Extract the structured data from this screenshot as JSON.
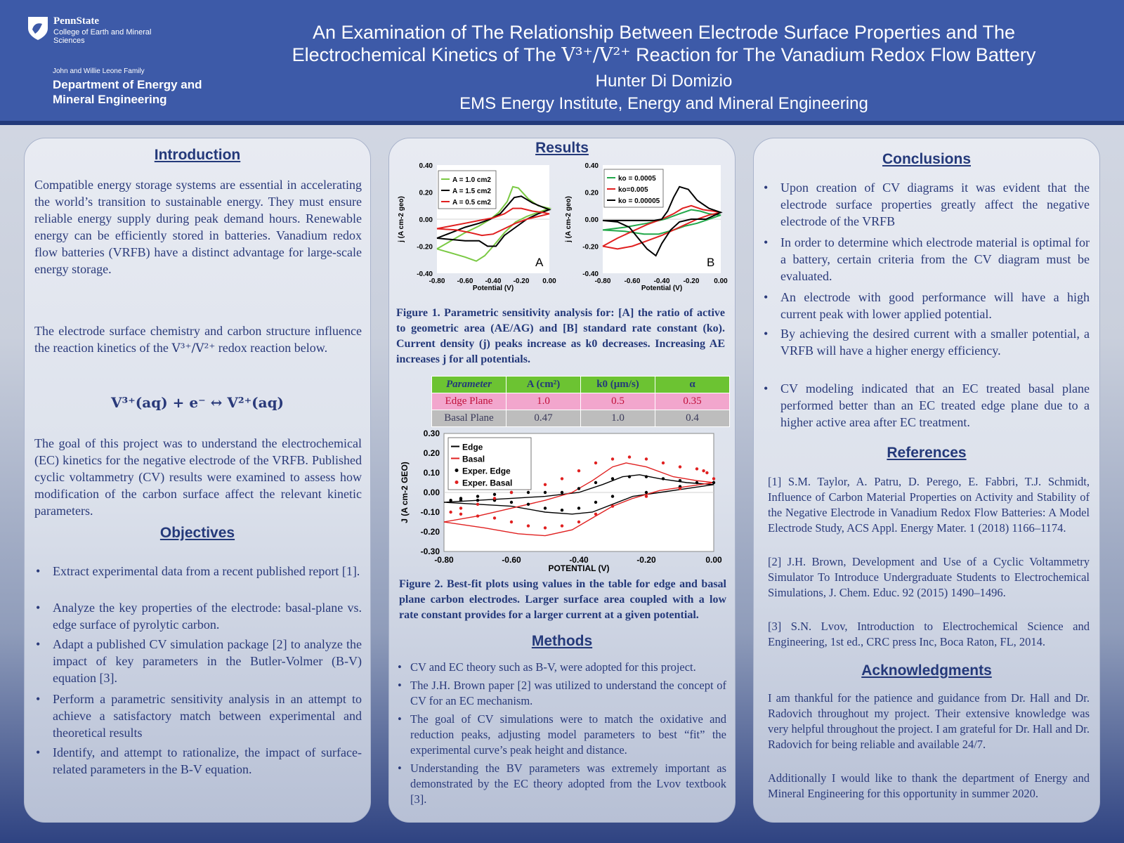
{
  "header": {
    "psu_name": "PennState",
    "college": "College of Earth and Mineral Sciences",
    "dept_small": "John and Willie Leone Family",
    "dept_big": "Department of Energy and Mineral Engineering",
    "title_line1": "An Examination of The Relationship Between Electrode Surface Properties and The",
    "title_line2_pre": "Electrochemical Kinetics of The ",
    "title_line2_ion": "V³⁺/V²⁺",
    "title_line2_post": " Reaction for The Vanadium Redox Flow Battery",
    "author": "Hunter Di Domizio",
    "affiliation": "EMS Energy Institute, Energy and Mineral Engineering"
  },
  "introduction": {
    "heading": "Introduction",
    "p1": "Compatible energy storage systems are essential in accelerating the world’s transition to sustainable energy. They must ensure reliable energy supply during peak demand hours. Renewable energy can be efficiently stored in batteries. Vanadium redox flow batteries (VRFB) have a distinct advantage for large-scale energy storage.",
    "p2_pre": "The electrode surface chemistry and carbon structure influence the reaction kinetics of the ",
    "p2_ion": "V³⁺/V²⁺",
    "p2_post": " redox reaction below.",
    "equation": "V³⁺(aq) + e⁻ ↔ V²⁺(aq)",
    "p3": "The goal of this project was to understand the electrochemical (EC) kinetics for the negative electrode of the VRFB. Published cyclic voltammetry (CV) results were examined to assess how modification of the carbon surface affect the relevant kinetic parameters."
  },
  "objectives": {
    "heading": "Objectives",
    "items": [
      "Extract experimental data from a recent published report [1].",
      "Analyze the key properties of the electrode: basal-plane vs. edge surface of pyrolytic carbon.",
      "Adapt a published CV simulation package [2] to analyze the impact of key parameters in the Butler-Volmer (B-V) equation [3].",
      "Perform a parametric sensitivity analysis in an attempt to achieve a satisfactory match between experimental and theoretical results",
      "Identify, and attempt to rationalize, the impact of surface-related parameters in the B-V equation."
    ]
  },
  "results": {
    "heading": "Results",
    "fig1_caption": "Figure 1. Parametric sensitivity analysis for: [A] the ratio of active to geometric area (AE/AG) and [B] standard rate constant (ko). Current density (j) peaks increase as k0 decreases. Increasing AE increases j for all potentials.",
    "table": {
      "headers": [
        "Parameter",
        "A (cm²)",
        "k0 (μm/s)",
        "α"
      ],
      "rows": [
        [
          "Edge Plane",
          "1.0",
          "0.5",
          "0.35"
        ],
        [
          "Basal Plane",
          "0.47",
          "1.0",
          "0.4"
        ]
      ]
    },
    "fig2_caption": "Figure 2. Best-fit plots using values in the table for edge and basal plane carbon electrodes. Larger surface area coupled with a low rate constant provides for a larger current at a given potential."
  },
  "methods": {
    "heading": "Methods",
    "items": [
      "CV and EC theory such as B-V, were adopted for this project.",
      "The J.H. Brown paper [2] was utilized to understand the concept of CV for an EC mechanism.",
      "The goal of CV simulations were to match the oxidative and reduction peaks,  adjusting model parameters to best “fit” the experimental curve’s peak height and distance.",
      "Understanding the BV parameters was extremely important as demonstrated by the EC theory adopted from the Lvov textbook [3]."
    ]
  },
  "conclusions": {
    "heading": "Conclusions",
    "items": [
      "Upon creation of CV diagrams it was evident that the electrode surface properties greatly affect the negative electrode of the VRFB",
      "In order to determine which electrode material is optimal for a battery, certain criteria from the CV diagram must be evaluated.",
      "An electrode with good performance will have a high current peak with lower applied potential.",
      "By achieving the desired current with a smaller potential, a VRFB will have a higher energy efficiency.",
      "CV modeling indicated that an EC treated basal plane performed better than an EC treated edge plane due to a higher active area after EC treatment."
    ]
  },
  "references": {
    "heading": "References",
    "items": [
      "[1] S.M. Taylor, A. Patru, D. Perego, E. Fabbri, T.J. Schmidt, Influence of Carbon Material Properties on Activity and Stability of the Negative Electrode in Vanadium Redox Flow Batteries: A Model Electrode Study, ACS Appl. Energy Mater. 1 (2018) 1166–1174.",
      "[2] J.H. Brown, Development and Use of a Cyclic Voltammetry Simulator To Introduce Undergraduate Students to Electrochemical Simulations, J. Chem. Educ. 92 (2015) 1490–1496.",
      "[3] S.N. Lvov, Introduction to Electrochemical Science and Engineering, 1st ed., CRC press Inc, Boca Raton, FL, 2014."
    ]
  },
  "acknowledgments": {
    "heading": "Acknowledgments",
    "p1": "I am thankful for the patience and guidance from Dr. Hall and Dr. Radovich throughout my project. Their extensive knowledge was very helpful throughout the project. I am grateful for Dr. Hall and Dr. Radovich for being reliable and available 24/7.",
    "p2": "Additionally I would like to thank the department of Energy and Mineral Engineering for this opportunity in summer 2020."
  },
  "chart_data": [
    {
      "type": "line",
      "panel_label": "A",
      "xlabel": "Potential (V)",
      "ylabel": "j (A cm-2 geo)",
      "xlim": [
        -0.8,
        0.0
      ],
      "ylim": [
        -0.4,
        0.4
      ],
      "xticks": [
        "-0.80",
        "-0.60",
        "-0.40",
        "-0.20",
        "0.00"
      ],
      "yticks": [
        "0.40",
        "0.20",
        "0.00",
        "-0.20",
        "-0.40"
      ],
      "legend_position": "top-left",
      "grid": false,
      "series": [
        {
          "name": "A = 1.0 cm2",
          "color": "#7ac943",
          "x": [
            -0.8,
            -0.7,
            -0.6,
            -0.5,
            -0.42,
            -0.36,
            -0.3,
            -0.26,
            -0.22,
            -0.15,
            -0.08,
            0.0,
            -0.08,
            -0.16,
            -0.24,
            -0.32,
            -0.4,
            -0.46,
            -0.52,
            -0.6,
            -0.7,
            -0.8
          ],
          "y": [
            -0.22,
            -0.16,
            -0.1,
            -0.05,
            0.0,
            0.05,
            0.13,
            0.24,
            0.23,
            0.15,
            0.1,
            0.08,
            0.05,
            0.02,
            -0.02,
            -0.1,
            -0.2,
            -0.27,
            -0.31,
            -0.28,
            -0.25,
            -0.22
          ]
        },
        {
          "name": "A = 1.5 cm2",
          "color": "#000000",
          "x": [
            -0.8,
            -0.7,
            -0.6,
            -0.5,
            -0.42,
            -0.35,
            -0.3,
            -0.25,
            -0.2,
            -0.12,
            -0.05,
            0.0,
            -0.08,
            -0.16,
            -0.24,
            -0.32,
            -0.38,
            -0.44,
            -0.5,
            -0.6,
            -0.7,
            -0.8
          ],
          "y": [
            -0.14,
            -0.1,
            -0.06,
            -0.03,
            0.0,
            0.04,
            0.1,
            0.16,
            0.17,
            0.12,
            0.09,
            0.07,
            0.04,
            0.0,
            -0.06,
            -0.12,
            -0.2,
            -0.2,
            -0.16,
            -0.16,
            -0.15,
            -0.14
          ]
        },
        {
          "name": "A = 0.5 cm2",
          "color": "#e02020",
          "x": [
            -0.8,
            -0.7,
            -0.6,
            -0.5,
            -0.4,
            -0.32,
            -0.26,
            -0.2,
            -0.12,
            -0.05,
            0.0,
            -0.08,
            -0.16,
            -0.24,
            -0.32,
            -0.4,
            -0.48,
            -0.56,
            -0.66,
            -0.8
          ],
          "y": [
            -0.07,
            -0.05,
            -0.03,
            -0.01,
            0.01,
            0.04,
            0.08,
            0.08,
            0.06,
            0.05,
            0.04,
            0.02,
            0.0,
            -0.03,
            -0.07,
            -0.11,
            -0.12,
            -0.1,
            -0.08,
            -0.07
          ]
        }
      ]
    },
    {
      "type": "line",
      "panel_label": "B",
      "xlabel": "Potential (V)",
      "ylabel": "j (A cm-2 geo)",
      "xlim": [
        -0.8,
        0.0
      ],
      "ylim": [
        -0.4,
        0.4
      ],
      "xticks": [
        "-0.80",
        "-0.60",
        "-0.40",
        "-0.20",
        "0.00"
      ],
      "yticks": [
        "0.40",
        "0.20",
        "0.00",
        "-0.20",
        "-0.40"
      ],
      "legend_position": "top-left",
      "grid": false,
      "series": [
        {
          "name": "ko = 0.0005",
          "color": "#22a84a",
          "x": [
            -0.8,
            -0.65,
            -0.5,
            -0.38,
            -0.28,
            -0.2,
            -0.14,
            -0.08,
            0.0,
            -0.08,
            -0.16,
            -0.24,
            -0.32,
            -0.42,
            -0.52,
            -0.65,
            -0.8
          ],
          "y": [
            -0.08,
            -0.06,
            -0.03,
            0.0,
            0.04,
            0.07,
            0.06,
            0.04,
            0.03,
            0.0,
            -0.03,
            -0.05,
            -0.08,
            -0.11,
            -0.11,
            -0.09,
            -0.08
          ]
        },
        {
          "name": "ko=0.005",
          "color": "#e02020",
          "x": [
            -0.8,
            -0.7,
            -0.6,
            -0.5,
            -0.4,
            -0.32,
            -0.26,
            -0.2,
            -0.12,
            -0.05,
            0.0,
            -0.08,
            -0.16,
            -0.24,
            -0.32,
            -0.4,
            -0.5,
            -0.6,
            -0.7,
            -0.8
          ],
          "y": [
            -0.2,
            -0.14,
            -0.09,
            -0.04,
            0.0,
            0.04,
            0.08,
            0.1,
            0.07,
            0.06,
            0.05,
            0.03,
            0.0,
            -0.04,
            -0.08,
            -0.12,
            -0.16,
            -0.2,
            -0.22,
            -0.2
          ]
        },
        {
          "name": "ko = 0.00005",
          "color": "#000000",
          "x": [
            -0.8,
            -0.6,
            -0.45,
            -0.4,
            -0.36,
            -0.32,
            -0.28,
            -0.22,
            -0.16,
            -0.08,
            0.0,
            -0.1,
            -0.2,
            -0.28,
            -0.34,
            -0.4,
            -0.44,
            -0.5,
            -0.56,
            -0.62,
            -0.7,
            -0.8
          ],
          "y": [
            -0.01,
            -0.01,
            -0.01,
            0.0,
            0.06,
            0.16,
            0.24,
            0.22,
            0.14,
            0.08,
            0.05,
            0.0,
            0.0,
            -0.02,
            -0.08,
            -0.18,
            -0.27,
            -0.22,
            -0.14,
            -0.06,
            -0.02,
            -0.01
          ]
        }
      ]
    },
    {
      "type": "line",
      "xlabel": "POTENTIAL (V)",
      "ylabel": "J (A cm-2 GEO)",
      "xlim": [
        -0.8,
        0.0
      ],
      "ylim": [
        -0.3,
        0.3
      ],
      "xticks": [
        "-0.80",
        "-0.60",
        "-0.40",
        "-0.20",
        "0.00"
      ],
      "yticks": [
        "0.30",
        "0.20",
        "0.10",
        "0.00",
        "-0.10",
        "-0.20",
        "-0.30"
      ],
      "legend_position": "top-left",
      "grid": false,
      "series": [
        {
          "name": "Edge",
          "color": "#000000",
          "style": "line",
          "x": [
            -0.8,
            -0.7,
            -0.6,
            -0.5,
            -0.4,
            -0.33,
            -0.27,
            -0.22,
            -0.16,
            -0.08,
            0.0,
            -0.08,
            -0.16,
            -0.24,
            -0.3,
            -0.36,
            -0.42,
            -0.5,
            -0.6,
            -0.7,
            -0.8
          ],
          "y": [
            -0.05,
            -0.04,
            -0.03,
            -0.02,
            0.0,
            0.04,
            0.08,
            0.09,
            0.07,
            0.05,
            0.04,
            0.02,
            0.0,
            -0.02,
            -0.06,
            -0.1,
            -0.11,
            -0.1,
            -0.07,
            -0.06,
            -0.05
          ]
        },
        {
          "name": "Basal",
          "color": "#e02020",
          "style": "line",
          "x": [
            -0.8,
            -0.7,
            -0.6,
            -0.5,
            -0.42,
            -0.36,
            -0.3,
            -0.26,
            -0.2,
            -0.12,
            -0.05,
            0.0,
            -0.08,
            -0.16,
            -0.24,
            -0.3,
            -0.36,
            -0.42,
            -0.5,
            -0.58,
            -0.68,
            -0.8
          ],
          "y": [
            -0.15,
            -0.12,
            -0.08,
            -0.04,
            0.0,
            0.06,
            0.13,
            0.15,
            0.13,
            0.08,
            0.06,
            0.05,
            0.03,
            0.01,
            -0.03,
            -0.07,
            -0.13,
            -0.19,
            -0.22,
            -0.21,
            -0.18,
            -0.15
          ]
        },
        {
          "name": "Exper. Edge",
          "color": "#000000",
          "style": "points",
          "x": [
            -0.78,
            -0.75,
            -0.7,
            -0.65,
            -0.6,
            -0.55,
            -0.5,
            -0.45,
            -0.4,
            -0.35,
            -0.3,
            -0.25,
            -0.2,
            -0.15,
            -0.1,
            -0.05,
            0.0,
            -0.1,
            -0.2,
            -0.3,
            -0.35,
            -0.4,
            -0.45,
            -0.5,
            -0.55,
            -0.6,
            -0.65,
            -0.7,
            -0.75
          ],
          "y": [
            -0.04,
            -0.03,
            -0.02,
            -0.01,
            0.0,
            0.0,
            0.0,
            0.0,
            0.02,
            0.05,
            0.07,
            0.08,
            0.08,
            0.07,
            0.06,
            0.05,
            0.05,
            0.03,
            0.0,
            -0.02,
            -0.05,
            -0.08,
            -0.09,
            -0.08,
            -0.06,
            -0.05,
            -0.04,
            -0.04,
            -0.04
          ]
        },
        {
          "name": "Exper. Basal",
          "color": "#e02020",
          "style": "points",
          "x": [
            -0.78,
            -0.75,
            -0.7,
            -0.65,
            -0.6,
            -0.55,
            -0.5,
            -0.45,
            -0.4,
            -0.35,
            -0.3,
            -0.25,
            -0.2,
            -0.15,
            -0.1,
            -0.05,
            -0.03,
            -0.02,
            0.0,
            -0.1,
            -0.2,
            -0.3,
            -0.35,
            -0.4,
            -0.45,
            -0.5,
            -0.55,
            -0.6,
            -0.65,
            -0.7,
            -0.75
          ],
          "y": [
            -0.1,
            -0.08,
            -0.06,
            -0.03,
            0.0,
            0.02,
            0.04,
            0.07,
            0.11,
            0.15,
            0.17,
            0.18,
            0.17,
            0.15,
            0.13,
            0.12,
            0.11,
            0.1,
            0.07,
            0.02,
            -0.02,
            -0.07,
            -0.11,
            -0.15,
            -0.17,
            -0.18,
            -0.17,
            -0.15,
            -0.13,
            -0.12,
            -0.11
          ]
        }
      ]
    }
  ]
}
